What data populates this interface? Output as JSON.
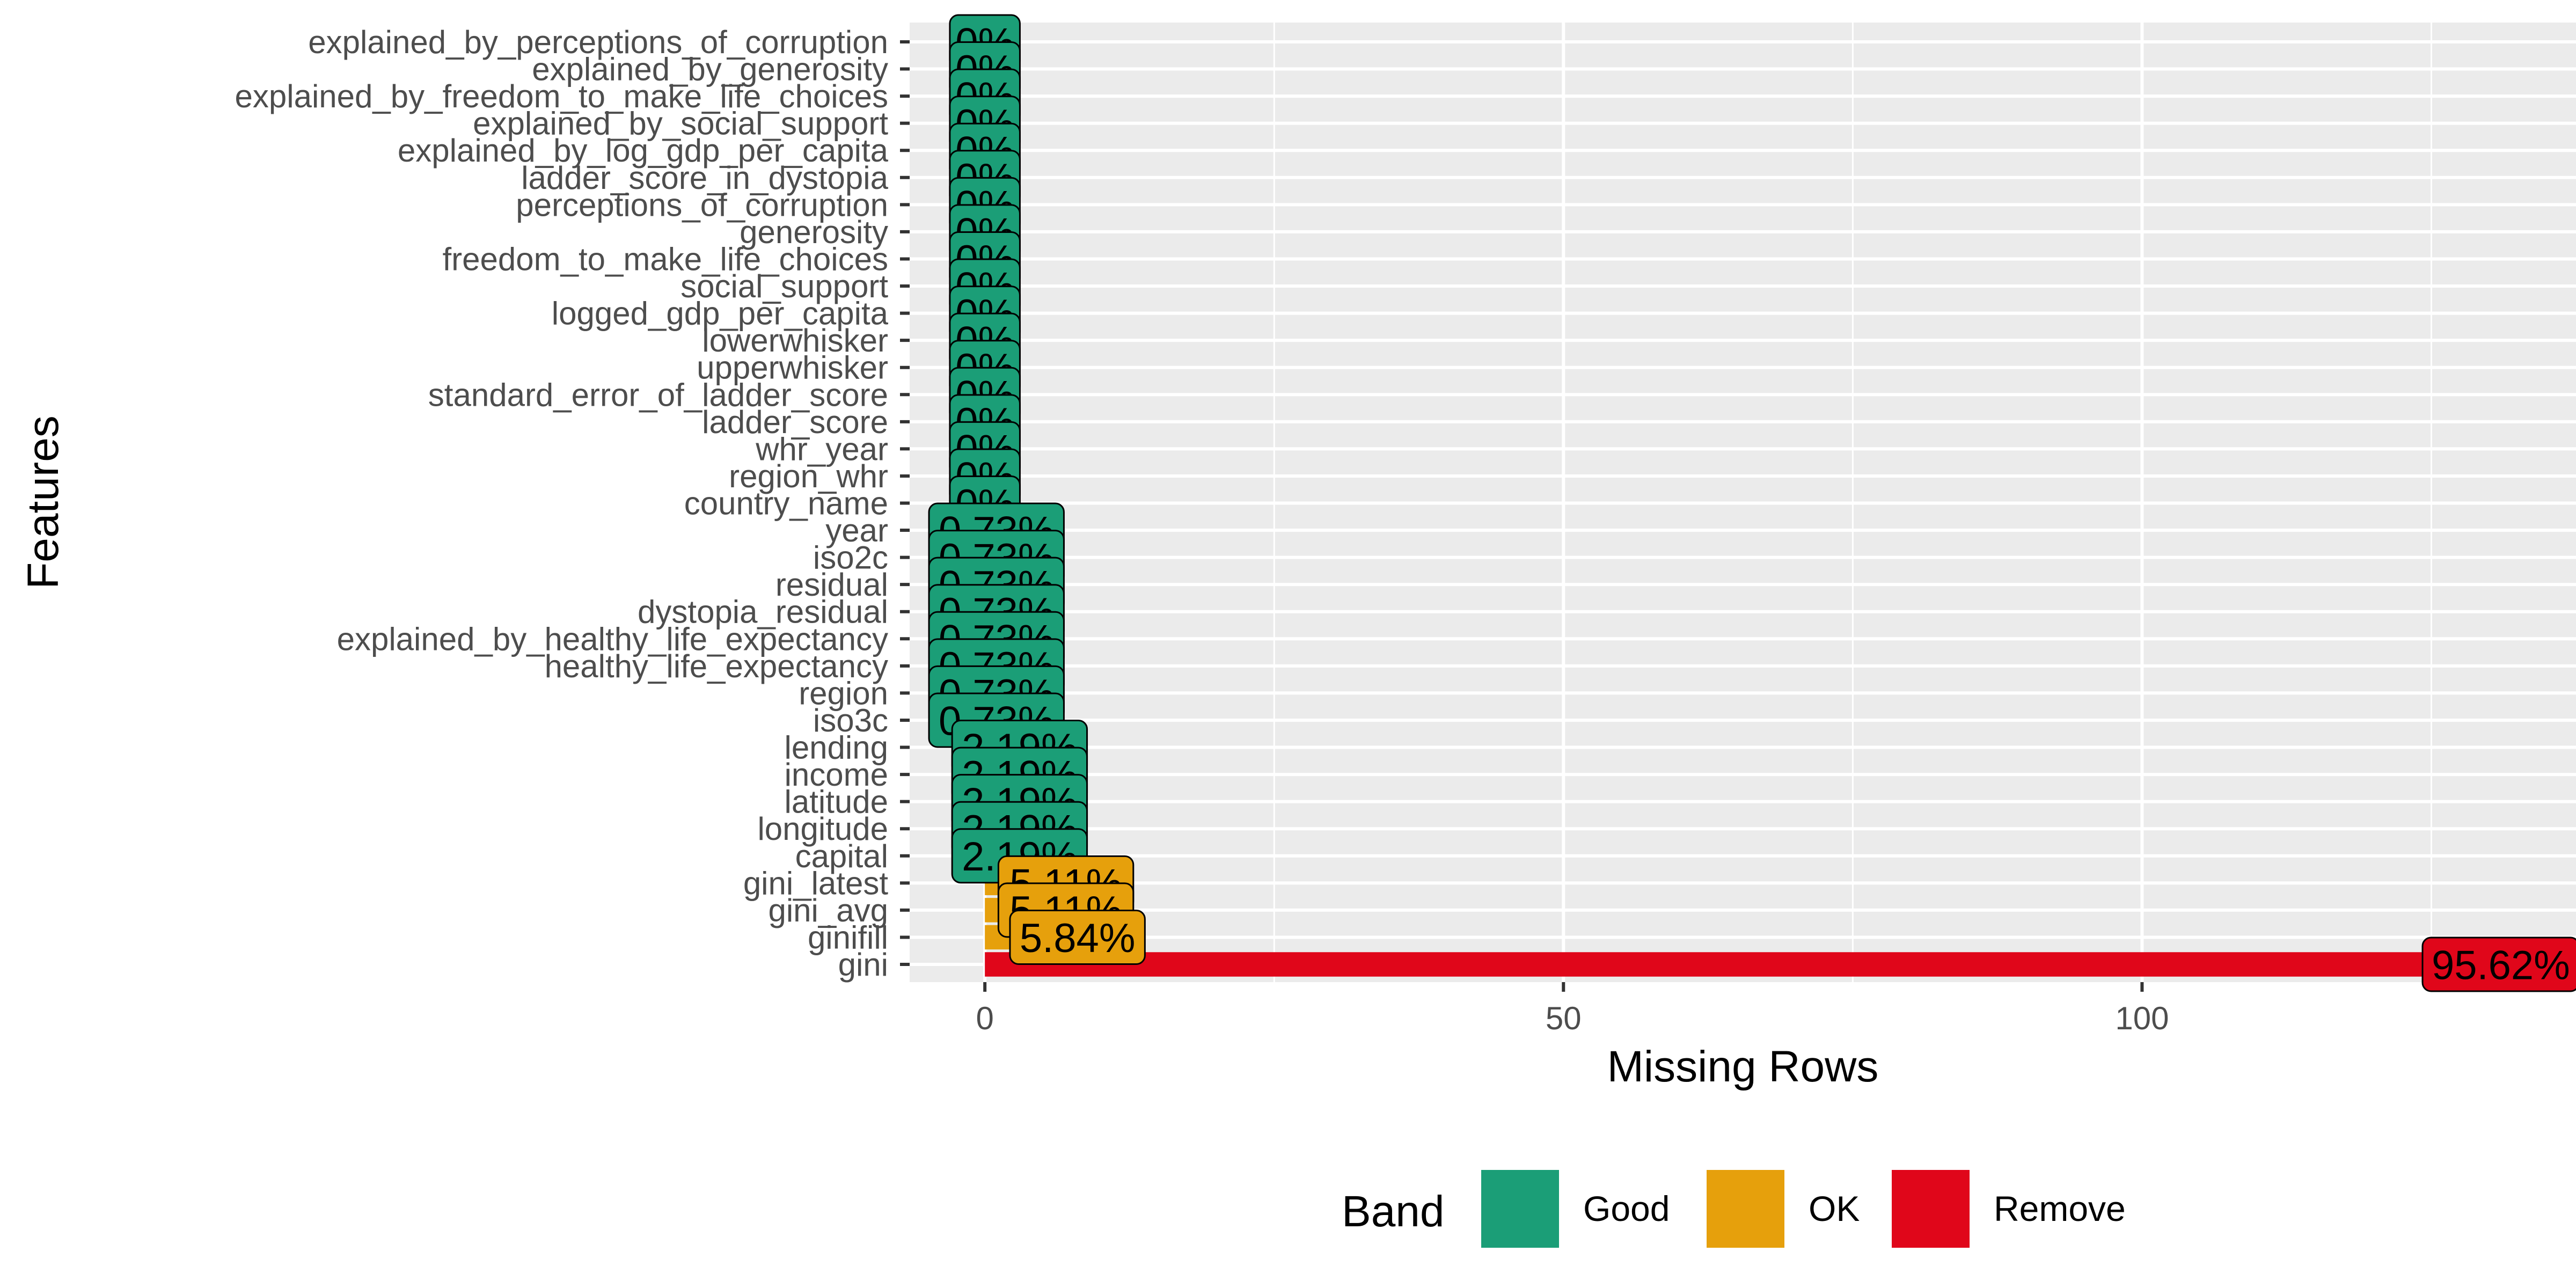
{
  "chart_data": {
    "type": "bar",
    "orientation": "horizontal",
    "xlabel": "Missing Rows",
    "ylabel": "Features",
    "xlim": [
      -6.5,
      137.5
    ],
    "x_ticks": [
      0,
      50,
      100
    ],
    "grid": true,
    "legend_position": "bottom",
    "legend": {
      "title": "Band",
      "items": [
        {
          "label": "Good",
          "color": "#1B9E77"
        },
        {
          "label": "OK",
          "color": "#E6A00C"
        },
        {
          "label": "Remove",
          "color": "#E0061A"
        }
      ]
    },
    "bars": [
      {
        "feature": "explained_by_perceptions_of_corruption",
        "missing": 0,
        "label": "0%",
        "band": "Good"
      },
      {
        "feature": "explained_by_generosity",
        "missing": 0,
        "label": "0%",
        "band": "Good"
      },
      {
        "feature": "explained_by_freedom_to_make_life_choices",
        "missing": 0,
        "label": "0%",
        "band": "Good"
      },
      {
        "feature": "explained_by_social_support",
        "missing": 0,
        "label": "0%",
        "band": "Good"
      },
      {
        "feature": "explained_by_log_gdp_per_capita",
        "missing": 0,
        "label": "0%",
        "band": "Good"
      },
      {
        "feature": "ladder_score_in_dystopia",
        "missing": 0,
        "label": "0%",
        "band": "Good"
      },
      {
        "feature": "perceptions_of_corruption",
        "missing": 0,
        "label": "0%",
        "band": "Good"
      },
      {
        "feature": "generosity",
        "missing": 0,
        "label": "0%",
        "band": "Good"
      },
      {
        "feature": "freedom_to_make_life_choices",
        "missing": 0,
        "label": "0%",
        "band": "Good"
      },
      {
        "feature": "social_support",
        "missing": 0,
        "label": "0%",
        "band": "Good"
      },
      {
        "feature": "logged_gdp_per_capita",
        "missing": 0,
        "label": "0%",
        "band": "Good"
      },
      {
        "feature": "lowerwhisker",
        "missing": 0,
        "label": "0%",
        "band": "Good"
      },
      {
        "feature": "upperwhisker",
        "missing": 0,
        "label": "0%",
        "band": "Good"
      },
      {
        "feature": "standard_error_of_ladder_score",
        "missing": 0,
        "label": "0%",
        "band": "Good"
      },
      {
        "feature": "ladder_score",
        "missing": 0,
        "label": "0%",
        "band": "Good"
      },
      {
        "feature": "whr_year",
        "missing": 0,
        "label": "0%",
        "band": "Good"
      },
      {
        "feature": "region_whr",
        "missing": 0,
        "label": "0%",
        "band": "Good"
      },
      {
        "feature": "country_name",
        "missing": 0,
        "label": "0%",
        "band": "Good"
      },
      {
        "feature": "year",
        "missing": 1,
        "label": "0.73%",
        "band": "Good"
      },
      {
        "feature": "iso2c",
        "missing": 1,
        "label": "0.73%",
        "band": "Good"
      },
      {
        "feature": "residual",
        "missing": 1,
        "label": "0.73%",
        "band": "Good"
      },
      {
        "feature": "dystopia_residual",
        "missing": 1,
        "label": "0.73%",
        "band": "Good"
      },
      {
        "feature": "explained_by_healthy_life_expectancy",
        "missing": 1,
        "label": "0.73%",
        "band": "Good"
      },
      {
        "feature": "healthy_life_expectancy",
        "missing": 1,
        "label": "0.73%",
        "band": "Good"
      },
      {
        "feature": "region",
        "missing": 1,
        "label": "0.73%",
        "band": "Good"
      },
      {
        "feature": "iso3c",
        "missing": 1,
        "label": "0.73%",
        "band": "Good"
      },
      {
        "feature": "lending",
        "missing": 3,
        "label": "2.19%",
        "band": "Good"
      },
      {
        "feature": "income",
        "missing": 3,
        "label": "2.19%",
        "band": "Good"
      },
      {
        "feature": "latitude",
        "missing": 3,
        "label": "2.19%",
        "band": "Good"
      },
      {
        "feature": "longitude",
        "missing": 3,
        "label": "2.19%",
        "band": "Good"
      },
      {
        "feature": "capital",
        "missing": 3,
        "label": "2.19%",
        "band": "Good"
      },
      {
        "feature": "gini_latest",
        "missing": 7,
        "label": "5.11%",
        "band": "OK"
      },
      {
        "feature": "gini_avg",
        "missing": 7,
        "label": "5.11%",
        "band": "OK"
      },
      {
        "feature": "ginifill",
        "missing": 8,
        "label": "5.84%",
        "band": "OK"
      },
      {
        "feature": "gini",
        "missing": 131,
        "label": "95.62%",
        "band": "Remove"
      }
    ]
  }
}
